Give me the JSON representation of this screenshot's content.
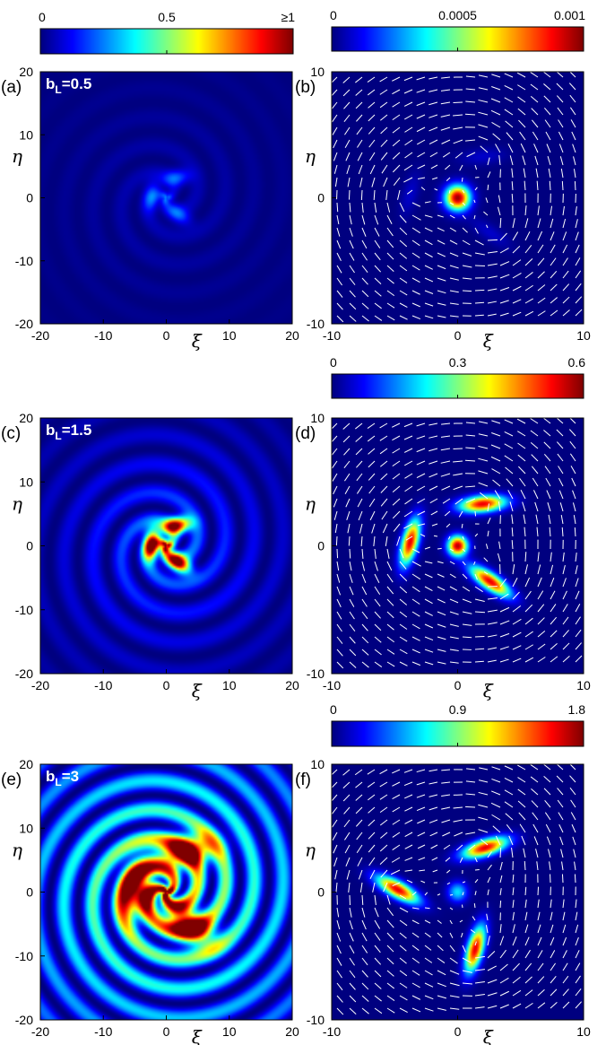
{
  "chart_data": [
    {
      "type": "heatmap",
      "panel_label": "(a)",
      "param_text": {
        "b": "b",
        "sub": "L",
        "value": "=0.5"
      },
      "xlabel": "ξ",
      "ylabel": "η",
      "xlim": [
        -20,
        20
      ],
      "ylim": [
        -20,
        20
      ],
      "xticks": [
        "-20",
        "-10",
        "0",
        "10",
        "20"
      ],
      "yticks": [
        "20",
        "10",
        "0",
        "-10",
        "-20"
      ],
      "colorbar": {
        "min": 0,
        "max": 1,
        "ticks": [
          "0",
          "0.5",
          "≥1"
        ]
      },
      "amplitude": 0.22,
      "wave_strength": 0.35,
      "colormap": "jet"
    },
    {
      "type": "heatmap",
      "panel_label": "(b)",
      "xlabel": "ξ",
      "ylabel": "η",
      "xlim": [
        -10,
        10
      ],
      "ylim": [
        -10,
        10
      ],
      "xticks": [
        "-10",
        "0",
        "10"
      ],
      "yticks": [
        "10",
        "0",
        "-10"
      ],
      "colorbar": {
        "min": 0,
        "max": 0.001,
        "ticks": [
          "0",
          "0.0005",
          "0.001"
        ]
      },
      "amplitude": 0.18,
      "wave_strength": 0,
      "quiver": true,
      "colormap": "jet"
    },
    {
      "type": "heatmap",
      "panel_label": "(c)",
      "param_text": {
        "b": "b",
        "sub": "L",
        "value": "=1.5"
      },
      "xlabel": "ξ",
      "ylabel": "η",
      "xlim": [
        -20,
        20
      ],
      "ylim": [
        -20,
        20
      ],
      "xticks": [
        "-20",
        "-10",
        "0",
        "10",
        "20"
      ],
      "yticks": [
        "20",
        "10",
        "0",
        "-10",
        "-20"
      ],
      "amplitude": 1.0,
      "wave_strength": 0.35,
      "colormap": "jet"
    },
    {
      "type": "heatmap",
      "panel_label": "(d)",
      "xlabel": "ξ",
      "ylabel": "η",
      "xlim": [
        -10,
        10
      ],
      "ylim": [
        -10,
        10
      ],
      "xticks": [
        "-10",
        "0",
        "10"
      ],
      "yticks": [
        "10",
        "0",
        "-10"
      ],
      "colorbar": {
        "min": 0,
        "max": 0.6,
        "ticks": [
          "0",
          "0.3",
          "0.6"
        ]
      },
      "amplitude": 1.0,
      "wave_strength": 0,
      "quiver": true,
      "colormap": "jet"
    },
    {
      "type": "heatmap",
      "panel_label": "(e)",
      "param_text": {
        "b": "b",
        "sub": "L",
        "value": "=3"
      },
      "xlabel": "ξ",
      "ylabel": "η",
      "xlim": [
        -20,
        20
      ],
      "ylim": [
        -20,
        20
      ],
      "xticks": [
        "-20",
        "-10",
        "0",
        "10",
        "20"
      ],
      "yticks": [
        "20",
        "10",
        "0",
        "-10",
        "-20"
      ],
      "amplitude": 1.0,
      "wave_strength": 0.8,
      "colormap": "jet"
    },
    {
      "type": "heatmap",
      "panel_label": "(f)",
      "xlabel": "ξ",
      "ylabel": "η",
      "xlim": [
        -10,
        10
      ],
      "ylim": [
        -10,
        10
      ],
      "xticks": [
        "-10",
        "0",
        "10"
      ],
      "yticks": [
        "10",
        "0",
        "-10"
      ],
      "colorbar": {
        "min": 0,
        "max": 1.8,
        "ticks": [
          "0",
          "0.9",
          "1.8"
        ]
      },
      "amplitude": 1.0,
      "wave_strength": 0,
      "quiver": true,
      "colormap": "jet"
    }
  ]
}
